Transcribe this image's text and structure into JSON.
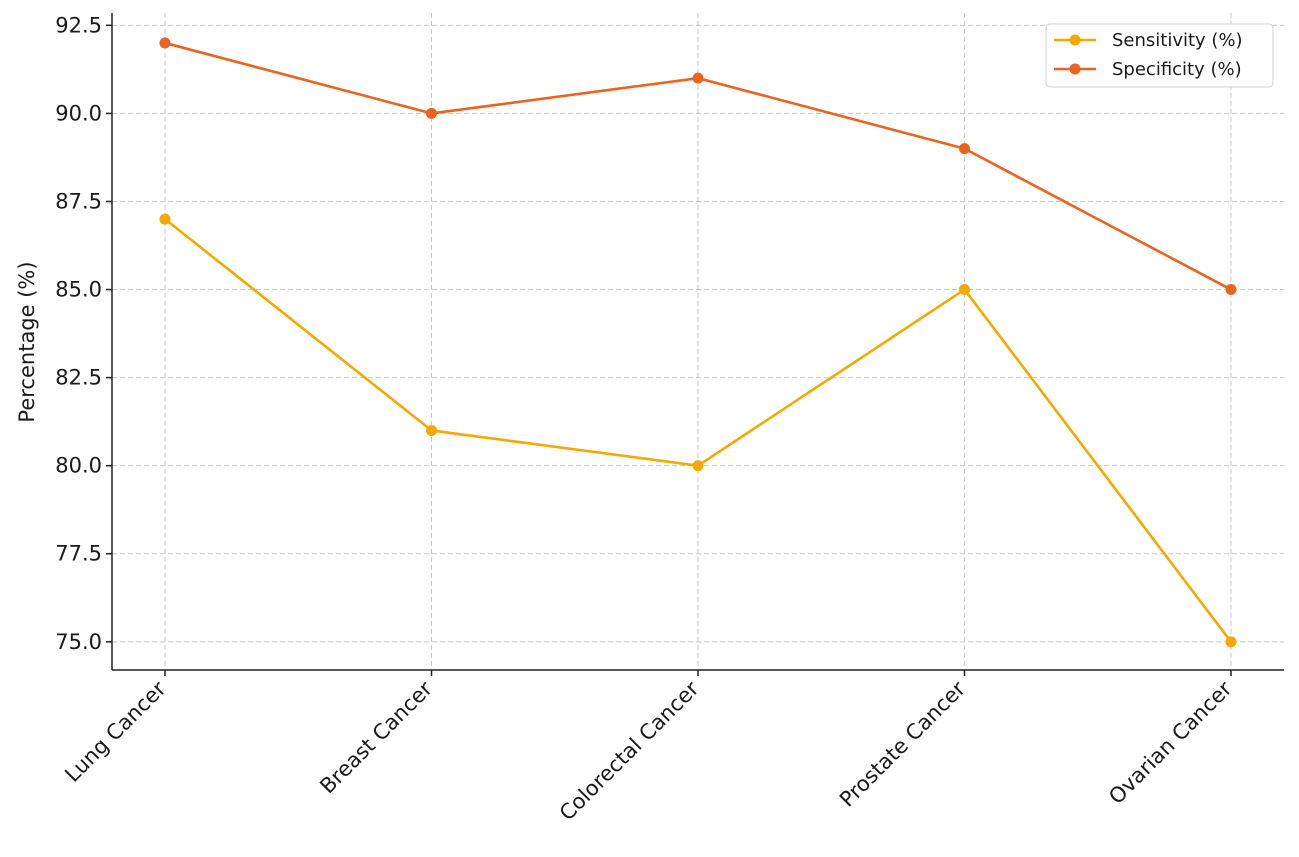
{
  "chart_data": {
    "type": "line",
    "title": "",
    "xlabel": "",
    "ylabel": "Percentage (%)",
    "categories": [
      "Lung Cancer",
      "Breast Cancer",
      "Colorectal Cancer",
      "Prostate Cancer",
      "Ovarian Cancer"
    ],
    "series": [
      {
        "name": "Sensitivity (%)",
        "color": "#f5a800",
        "values": [
          87,
          81,
          80,
          85,
          75
        ]
      },
      {
        "name": "Specificity (%)",
        "color": "#ea6420",
        "values": [
          92,
          90,
          91,
          89,
          85
        ]
      }
    ],
    "ylim": [
      74.2,
      92.85
    ],
    "yticks": [
      75.0,
      77.5,
      80.0,
      82.5,
      85.0,
      87.5,
      90.0,
      92.5
    ],
    "ytick_labels": [
      "75.0",
      "77.5",
      "80.0",
      "82.5",
      "85.0",
      "87.5",
      "90.0",
      "92.5"
    ],
    "grid": true,
    "grid_style": "dashed",
    "legend": "top-right",
    "marker": "circle"
  }
}
